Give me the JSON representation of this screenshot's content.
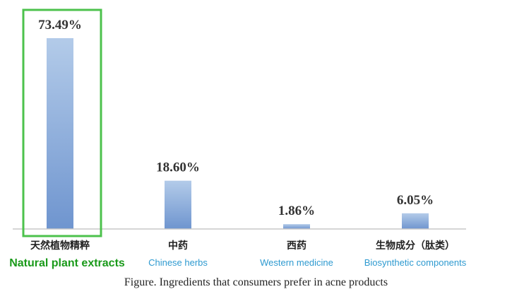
{
  "chart_data": {
    "type": "bar",
    "categories": [
      "天然植物精粹",
      "中药",
      "西药",
      "生物成分（肽类）"
    ],
    "categories_en": [
      "Natural plant extracts",
      "Chinese herbs",
      "Western medicine",
      "Biosynthetic components"
    ],
    "values": [
      73.49,
      18.6,
      1.86,
      6.05
    ],
    "value_labels": [
      "73.49%",
      "18.60%",
      "1.86%",
      "6.05%"
    ],
    "unit": "%",
    "highlight_index": 0,
    "ylim": [
      0,
      80
    ],
    "grid": false,
    "legend": "none"
  },
  "colors": {
    "bar_top": "#b3cbe9",
    "bar_bottom": "#6f95cf",
    "highlight_box": "#4cc24c",
    "highlight_text": "#1a9a1a",
    "english_label": "#2e9ad0",
    "baseline": "#c8c8c8"
  },
  "caption": "Figure. Ingredients that consumers prefer in acne products"
}
